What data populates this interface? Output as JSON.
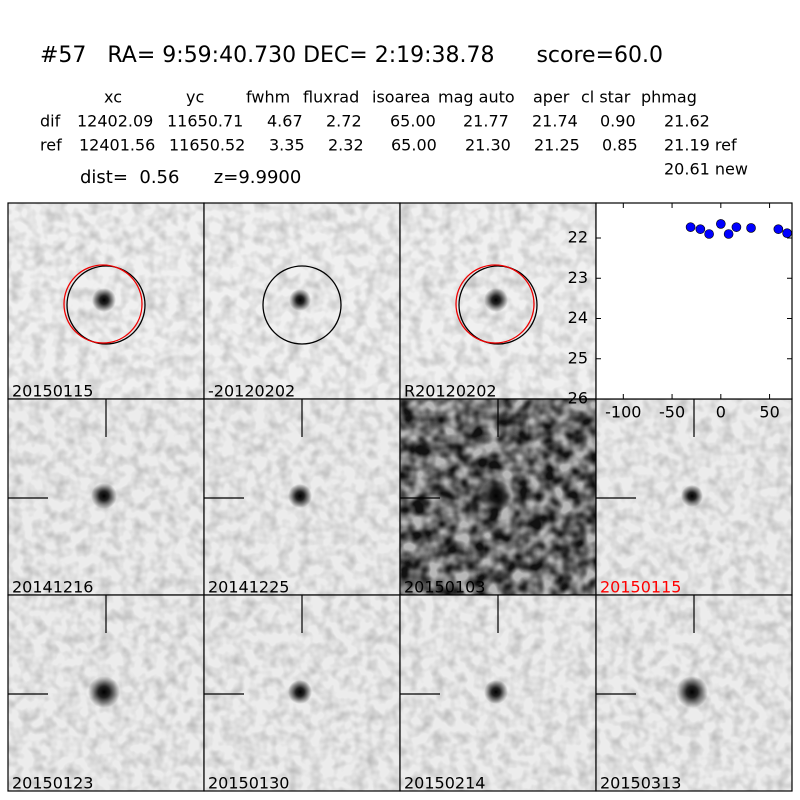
{
  "header": {
    "title": "#57   RA= 9:59:40.730 DEC= 2:19:38.78      score=60.0"
  },
  "table": {
    "columns": [
      "xc",
      "yc",
      "fwhm",
      "fluxrad",
      "isoarea",
      "mag auto",
      "aper",
      "cl star",
      "phmag"
    ],
    "rows": [
      {
        "label": "dif",
        "cells": [
          "12402.09",
          "11650.71",
          "4.67",
          "2.72",
          "65.00",
          "21.77",
          "21.74",
          "0.90",
          "21.62"
        ]
      },
      {
        "label": "ref",
        "cells": [
          "12401.56",
          "11650.52",
          "3.35",
          "2.32",
          "65.00",
          "21.30",
          "21.25",
          "0.85",
          "21.19 ref"
        ]
      }
    ],
    "extra": "20.61 new"
  },
  "info": "dist=  0.56      z=9.9900",
  "thumbnails": [
    {
      "label": "20150115"
    },
    {
      "label": "-20120202"
    },
    {
      "label": "R20120202"
    },
    {
      "label": "20141216"
    },
    {
      "label": "20141225"
    },
    {
      "label": "20150103"
    },
    {
      "label": "20150115",
      "color": "#ff0000"
    },
    {
      "label": "20150123"
    },
    {
      "label": "20150130"
    },
    {
      "label": "20150214"
    },
    {
      "label": "20150313"
    }
  ],
  "chart_data": {
    "type": "scatter",
    "series": [
      {
        "color": "#0000ff",
        "x": [
          -31,
          -21,
          -12,
          0,
          8,
          16,
          31,
          59,
          68
        ],
        "values": [
          21.73,
          21.78,
          21.9,
          21.65,
          21.9,
          21.73,
          21.75,
          21.78,
          21.88
        ],
        "errors": [
          0.04,
          0.04,
          0.09,
          0.04,
          0.06,
          0.05,
          0.04,
          0.04,
          0.07
        ]
      }
    ],
    "xlim": [
      -128,
      73
    ],
    "ylim": [
      26,
      21.13
    ],
    "xticks": [
      -100,
      -50,
      0,
      50
    ],
    "yticks": [
      22,
      23,
      24,
      25,
      26
    ]
  }
}
